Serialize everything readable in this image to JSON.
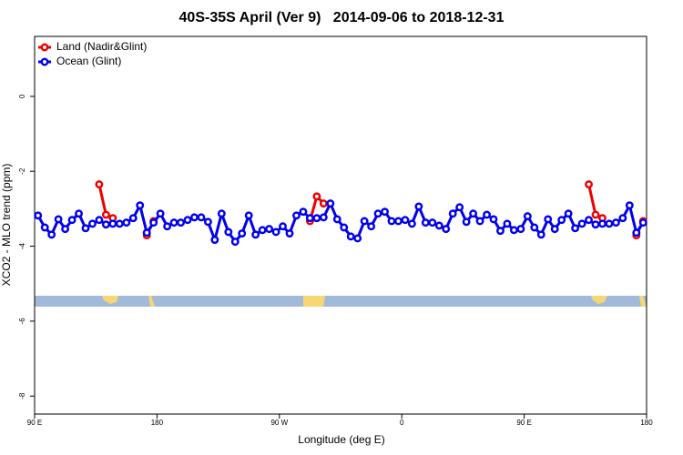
{
  "chart_data": {
    "type": "line",
    "title": "40S-35S April (Ver 9)   2014-09-06 to 2018-12-31",
    "xlabel": "Longitude (deg E)",
    "ylabel": "XCO2 - MLO trend (ppm)",
    "xlim": [
      90,
      540
    ],
    "ylim": [
      -8.48,
      1.6
    ],
    "xticks": [
      {
        "value": 90,
        "label": "90 E"
      },
      {
        "value": 180,
        "label": "180"
      },
      {
        "value": 270,
        "label": "90 W"
      },
      {
        "value": 360,
        "label": "0"
      },
      {
        "value": 450,
        "label": "90 E"
      },
      {
        "value": 540,
        "label": "180"
      }
    ],
    "yticks": [
      0,
      -2,
      -4,
      -6,
      -8
    ],
    "legend": "upper left",
    "series": [
      {
        "name": "Land (Nadir&Glint)",
        "color": "#ee0000",
        "x": [
          137.5,
          142.5,
          147.5,
          null,
          172.5,
          177.5,
          null,
          292.5,
          297.5,
          302.5,
          null,
          497.5,
          502.5,
          507.5,
          null,
          532.5,
          537.5
        ],
        "values": [
          -2.35,
          -3.16,
          -3.25,
          null,
          -3.71,
          -3.33,
          null,
          -3.33,
          -2.67,
          -2.86,
          null,
          -2.35,
          -3.16,
          -3.25,
          null,
          -3.71,
          -3.33
        ]
      },
      {
        "name": "Ocean (Glint)",
        "color": "#0000ee",
        "x": [
          92.5,
          97.5,
          102.5,
          107.5,
          112.5,
          117.5,
          122.5,
          127.5,
          132.5,
          137.5,
          142.5,
          147.5,
          152.5,
          157.5,
          162.5,
          167.5,
          172.5,
          177.5,
          182.5,
          187.5,
          192.5,
          197.5,
          202.5,
          207.5,
          212.5,
          217.5,
          222.5,
          227.5,
          232.5,
          237.5,
          242.5,
          247.5,
          252.5,
          257.5,
          262.5,
          267.5,
          272.5,
          277.5,
          282.5,
          287.5,
          292.5,
          297.5,
          302.5,
          307.5,
          312.5,
          317.5,
          322.5,
          327.5,
          332.5,
          337.5,
          342.5,
          347.5,
          352.5,
          357.5,
          362.5,
          367.5,
          372.5,
          377.5,
          382.5,
          387.5,
          392.5,
          397.5,
          402.5,
          407.5,
          412.5,
          417.5,
          422.5,
          427.5,
          432.5,
          437.5,
          442.5,
          447.5,
          452.5,
          457.5,
          462.5,
          467.5,
          472.5,
          477.5,
          482.5,
          487.5,
          492.5,
          497.5,
          502.5,
          507.5,
          512.5,
          517.5,
          522.5,
          527.5,
          532.5,
          537.5
        ],
        "values": [
          -3.18,
          -3.5,
          -3.69,
          -3.28,
          -3.54,
          -3.3,
          -3.13,
          -3.52,
          -3.4,
          -3.3,
          -3.42,
          -3.4,
          -3.4,
          -3.37,
          -3.25,
          -2.91,
          -3.64,
          -3.37,
          -3.13,
          -3.47,
          -3.37,
          -3.37,
          -3.3,
          -3.23,
          -3.23,
          -3.35,
          -3.83,
          -3.13,
          -3.62,
          -3.88,
          -3.66,
          -3.18,
          -3.69,
          -3.57,
          -3.54,
          -3.62,
          -3.47,
          -3.66,
          -3.18,
          -3.08,
          -3.25,
          -3.25,
          -3.23,
          -2.86,
          -3.28,
          -3.5,
          -3.74,
          -3.79,
          -3.33,
          -3.47,
          -3.13,
          -3.08,
          -3.33,
          -3.33,
          -3.3,
          -3.4,
          -2.94,
          -3.37,
          -3.37,
          -3.45,
          -3.54,
          -3.13,
          -2.96,
          -3.35,
          -3.13,
          -3.33,
          -3.16,
          -3.28,
          -3.59,
          -3.4,
          -3.57,
          -3.54,
          -3.2,
          -3.5,
          -3.69,
          -3.28,
          -3.54,
          -3.3,
          -3.13,
          -3.52,
          -3.4,
          -3.3,
          -3.42,
          -3.4,
          -3.4,
          -3.37,
          -3.25,
          -2.91,
          -3.64,
          -3.37
        ]
      }
    ]
  }
}
